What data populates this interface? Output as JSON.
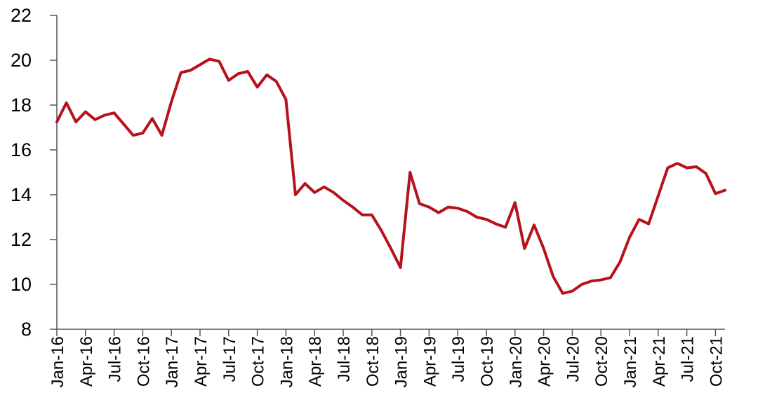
{
  "chart_data": {
    "type": "line",
    "title": "",
    "xlabel": "",
    "ylabel": "",
    "ylim": [
      8,
      22
    ],
    "y_ticks": [
      8,
      10,
      12,
      14,
      16,
      18,
      20,
      22
    ],
    "y_tick_labels": [
      "8",
      "10",
      "12",
      "14",
      "16",
      "18",
      "20",
      "22"
    ],
    "x_tick_labels": [
      "Jan-16",
      "Apr-16",
      "Jul-16",
      "Oct-16",
      "Jan-17",
      "Apr-17",
      "Jul-17",
      "Oct-17",
      "Jan-18",
      "Apr-18",
      "Jul-18",
      "Oct-18",
      "Jan-19",
      "Apr-19",
      "Jul-19",
      "Oct-19",
      "Jan-20",
      "Apr-20",
      "Jul-20",
      "Oct-20",
      "Jan-21",
      "Apr-21",
      "Jul-21",
      "Oct-21"
    ],
    "grid": false,
    "legend": "none",
    "colors": {
      "series": "#b5121b",
      "axis": "#555555"
    },
    "series": [
      {
        "values": [
          17.25,
          18.1,
          17.25,
          17.7,
          17.35,
          17.55,
          17.65,
          17.15,
          16.65,
          16.75,
          17.4,
          16.65,
          18.15,
          19.45,
          19.55,
          19.8,
          20.05,
          19.95,
          19.1,
          19.4,
          19.5,
          18.8,
          19.35,
          19.05,
          18.25,
          14.0,
          14.5,
          14.1,
          14.35,
          14.1,
          13.75,
          13.45,
          13.1,
          13.1,
          12.4,
          11.6,
          10.75,
          15.0,
          13.6,
          13.45,
          13.2,
          13.45,
          13.4,
          13.25,
          13.0,
          12.9,
          12.7,
          12.55,
          13.65,
          11.6,
          12.65,
          11.6,
          10.35,
          9.6,
          9.7,
          10.0,
          10.15,
          10.2,
          10.3,
          11.0,
          12.1,
          12.9,
          12.7,
          13.95,
          15.2,
          15.4,
          15.2,
          15.25,
          14.95,
          14.05,
          14.2
        ],
        "note_index_0": "Jan-16"
      }
    ]
  }
}
